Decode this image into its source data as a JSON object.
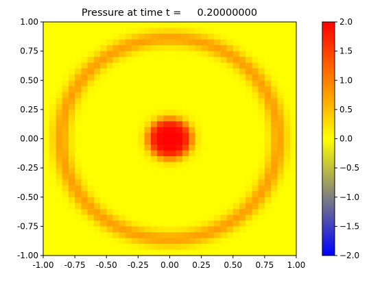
{
  "chart_data": {
    "type": "heatmap",
    "title": "Pressure at time t =     0.20000000",
    "xlabel": "",
    "ylabel": "",
    "xlim": [
      -1.0,
      1.0
    ],
    "ylim": [
      -1.0,
      1.0
    ],
    "x_ticks": [
      "-1.00",
      "-0.75",
      "-0.50",
      "-0.25",
      "0.00",
      "0.25",
      "0.50",
      "0.75",
      "1.00"
    ],
    "y_ticks": [
      "1.00",
      "0.75",
      "0.50",
      "0.25",
      "0.00",
      "-0.25",
      "-0.50",
      "-0.75",
      "-1.00"
    ],
    "grid": false,
    "grid_resolution": 40,
    "field": {
      "background_value": 0.0,
      "central_peak": {
        "center": [
          0.0,
          0.0
        ],
        "value": 2.0,
        "radius": 0.17
      },
      "ring": {
        "radius": 0.86,
        "value": 0.75,
        "width": 0.07
      }
    },
    "colorbar": {
      "min": -2.0,
      "max": 2.0,
      "colors": [
        "#0000ff",
        "#ffff00",
        "#ff0000"
      ],
      "ticks": [
        "2.0",
        "1.5",
        "1.0",
        "0.5",
        "0.0",
        "−0.5",
        "−1.0",
        "−1.5",
        "−2.0"
      ]
    }
  }
}
